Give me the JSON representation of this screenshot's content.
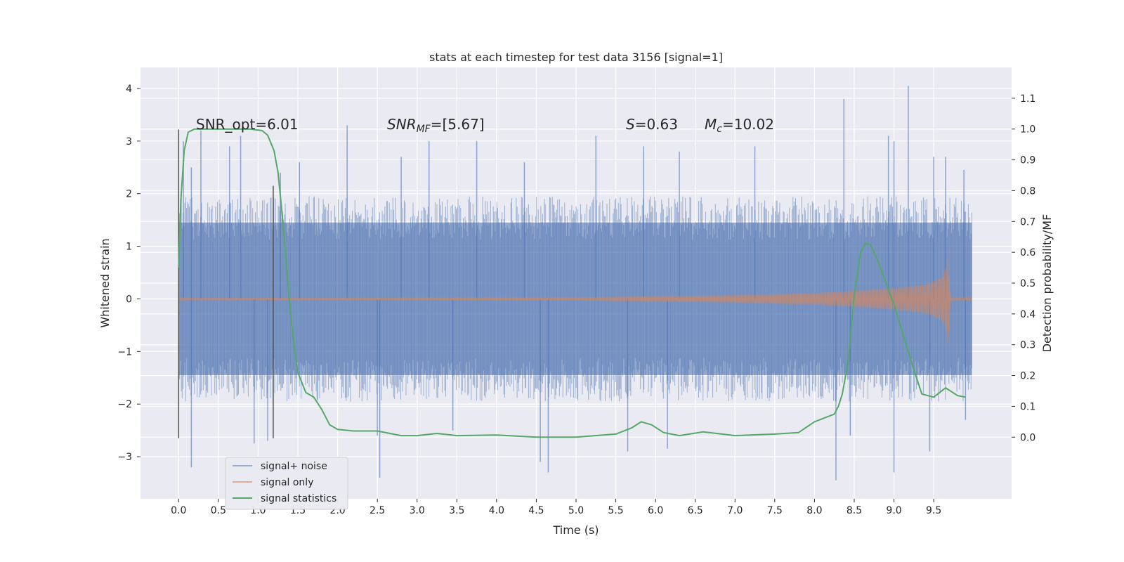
{
  "chart_data": {
    "type": "line",
    "title": "stats at each timestep for test data 3156 [signal=1]",
    "xlabel": "Time (s)",
    "ylabel": "Whitened strain",
    "y2label": "Detection probability/MF",
    "xlim": [
      -0.48,
      10.48
    ],
    "ylim": [
      -3.8,
      4.4
    ],
    "y2lim": [
      -0.2,
      1.2
    ],
    "x_ticks": [
      "0.0",
      "0.5",
      "1.0",
      "1.5",
      "2.0",
      "2.5",
      "3.0",
      "3.5",
      "4.0",
      "4.5",
      "5.0",
      "5.5",
      "6.0",
      "6.5",
      "7.0",
      "7.5",
      "8.0",
      "8.5",
      "9.0",
      "9.5"
    ],
    "y_ticks": [
      "−3",
      "−2",
      "−1",
      "0",
      "1",
      "2",
      "3",
      "4"
    ],
    "y2_ticks": [
      "0.0",
      "0.1",
      "0.2",
      "0.3",
      "0.4",
      "0.5",
      "0.6",
      "0.7",
      "0.8",
      "0.9",
      "1.0",
      "1.1"
    ],
    "grid": true,
    "legend_position": "lower-left",
    "legend": [
      "signal+ noise",
      "signal only",
      "signal statistics"
    ],
    "annotations": {
      "snr_opt": "SNR_opt=6.01",
      "snr_mf_sym": "SNR",
      "snr_mf_sub": "MF",
      "snr_mf_eq": "=[5.67]",
      "s_sym": "S",
      "s_eq": "=0.63",
      "mc_sym": "M",
      "mc_sub": "c",
      "mc_eq": "=10.02"
    },
    "vertical_lines": [
      {
        "x": 0.0,
        "ymin": -2.65,
        "ymax": 3.22
      },
      {
        "x": 1.19,
        "ymin": -2.65,
        "ymax": 2.15
      }
    ],
    "series": [
      {
        "name": "signal+ noise",
        "color": "#4c72b0",
        "axis": "left",
        "description_range": [
          0.0,
          9.98
        ],
        "sample_envelope": {
          "typical_max": 1.5,
          "typical_min": -1.5
        },
        "peaks": [
          {
            "x": 0.06,
            "y": 3.0
          },
          {
            "x": 0.16,
            "y": 2.5
          },
          {
            "x": 0.28,
            "y": 3.2
          },
          {
            "x": 0.64,
            "y": 2.9
          },
          {
            "x": 0.78,
            "y": 3.1
          },
          {
            "x": 1.28,
            "y": 2.4
          },
          {
            "x": 1.52,
            "y": 2.6
          },
          {
            "x": 2.12,
            "y": 3.3
          },
          {
            "x": 2.8,
            "y": 2.7
          },
          {
            "x": 3.15,
            "y": 3.0
          },
          {
            "x": 3.75,
            "y": 3.0
          },
          {
            "x": 4.35,
            "y": 2.6
          },
          {
            "x": 5.25,
            "y": 3.1
          },
          {
            "x": 5.85,
            "y": 2.9
          },
          {
            "x": 6.3,
            "y": 2.8
          },
          {
            "x": 7.25,
            "y": 2.9
          },
          {
            "x": 8.37,
            "y": 3.8
          },
          {
            "x": 8.93,
            "y": 3.1
          },
          {
            "x": 9.0,
            "y": 3.0
          },
          {
            "x": 9.18,
            "y": 4.05
          },
          {
            "x": 9.5,
            "y": 2.7
          },
          {
            "x": 9.65,
            "y": 2.7
          },
          {
            "x": 9.88,
            "y": 2.45
          }
        ],
        "troughs": [
          {
            "x": 0.16,
            "y": -3.2
          },
          {
            "x": 0.95,
            "y": -2.75
          },
          {
            "x": 1.12,
            "y": -2.7
          },
          {
            "x": 2.5,
            "y": -2.6
          },
          {
            "x": 2.53,
            "y": -3.4
          },
          {
            "x": 3.45,
            "y": -2.5
          },
          {
            "x": 4.55,
            "y": -3.1
          },
          {
            "x": 4.65,
            "y": -3.3
          },
          {
            "x": 5.65,
            "y": -2.9
          },
          {
            "x": 6.15,
            "y": -2.85
          },
          {
            "x": 8.27,
            "y": -3.45
          },
          {
            "x": 8.45,
            "y": -2.6
          },
          {
            "x": 9.0,
            "y": -3.3
          },
          {
            "x": 9.45,
            "y": -2.9
          },
          {
            "x": 9.9,
            "y": -2.3
          }
        ]
      },
      {
        "name": "signal only",
        "color": "#dd8452",
        "axis": "left",
        "description_range": [
          0.0,
          9.98
        ],
        "envelope": [
          {
            "x": 0.0,
            "amp": 0.02
          },
          {
            "x": 5.0,
            "amp": 0.03
          },
          {
            "x": 6.0,
            "amp": 0.05
          },
          {
            "x": 7.0,
            "amp": 0.07
          },
          {
            "x": 8.0,
            "amp": 0.11
          },
          {
            "x": 8.5,
            "amp": 0.15
          },
          {
            "x": 9.0,
            "amp": 0.2
          },
          {
            "x": 9.4,
            "amp": 0.27
          },
          {
            "x": 9.6,
            "amp": 0.4
          },
          {
            "x": 9.66,
            "amp": 0.6
          },
          {
            "x": 9.68,
            "amp": 0.98
          },
          {
            "x": 9.7,
            "amp": 0.2
          },
          {
            "x": 9.72,
            "amp": 0.02
          },
          {
            "x": 9.98,
            "amp": 0.02
          }
        ]
      },
      {
        "name": "signal statistics",
        "color": "#55a868",
        "axis": "right",
        "x": [
          0.0,
          0.03,
          0.07,
          0.12,
          0.2,
          0.35,
          0.6,
          0.9,
          1.05,
          1.12,
          1.2,
          1.25,
          1.3,
          1.35,
          1.4,
          1.45,
          1.5,
          1.6,
          1.7,
          1.8,
          1.9,
          2.0,
          2.2,
          2.5,
          2.8,
          3.0,
          3.25,
          3.5,
          4.0,
          4.5,
          5.0,
          5.5,
          5.7,
          5.82,
          5.95,
          6.1,
          6.3,
          6.6,
          7.0,
          7.5,
          7.8,
          8.0,
          8.15,
          8.25,
          8.3,
          8.35,
          8.42,
          8.5,
          8.58,
          8.64,
          8.7,
          8.8,
          9.0,
          9.2,
          9.35,
          9.5,
          9.65,
          9.8,
          9.9
        ],
        "values": [
          0.55,
          0.78,
          0.93,
          0.99,
          1.0,
          1.0,
          1.0,
          1.0,
          0.995,
          0.98,
          0.93,
          0.86,
          0.73,
          0.58,
          0.42,
          0.3,
          0.21,
          0.145,
          0.13,
          0.09,
          0.04,
          0.025,
          0.02,
          0.02,
          0.005,
          0.005,
          0.012,
          0.005,
          0.007,
          0.0,
          0.0,
          0.01,
          0.03,
          0.05,
          0.04,
          0.015,
          0.005,
          0.017,
          0.005,
          0.01,
          0.015,
          0.05,
          0.065,
          0.075,
          0.1,
          0.14,
          0.24,
          0.46,
          0.6,
          0.628,
          0.626,
          0.57,
          0.43,
          0.26,
          0.14,
          0.13,
          0.16,
          0.135,
          0.13
        ]
      }
    ]
  }
}
